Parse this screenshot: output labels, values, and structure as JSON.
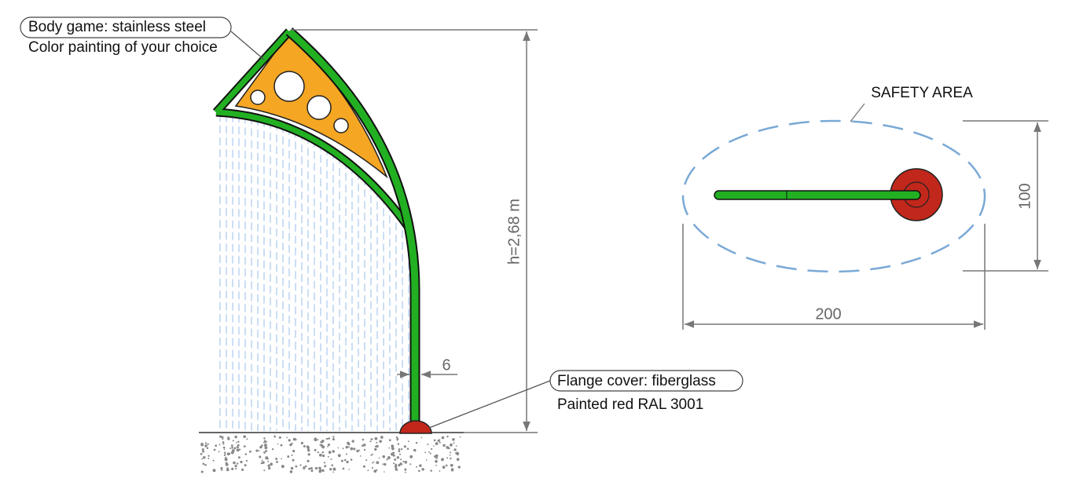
{
  "labels": {
    "body_title": "Body game: stainless steel",
    "body_note": "Color painting of your choice",
    "flange_title": "Flange cover: fiberglass",
    "flange_note": "Painted red RAL 3001"
  },
  "dimensions": {
    "height": "h=2,68 m",
    "pole": "6",
    "area_title": "SAFETY AREA",
    "area_depth": "100",
    "area_width": "200"
  }
}
